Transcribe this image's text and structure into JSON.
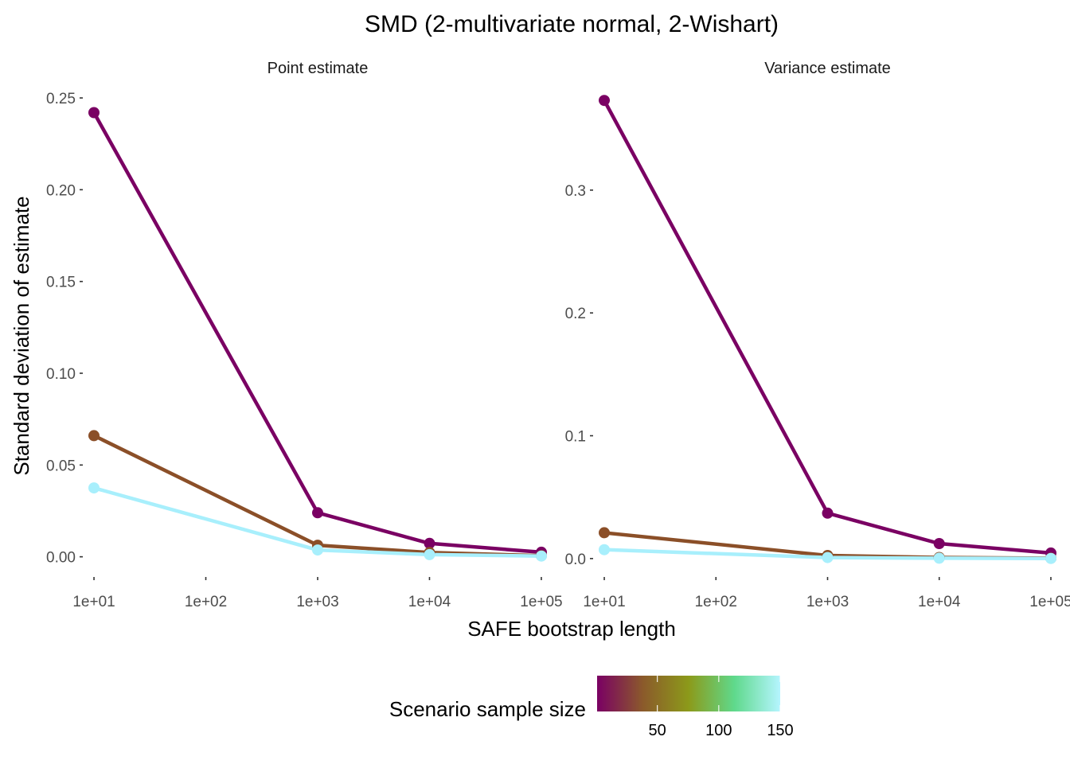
{
  "chart_data": {
    "type": "line",
    "title": "SMD (2-multivariate normal, 2-Wishart)",
    "xlabel": "SAFE bootstrap length",
    "ylabel": "Standard deviation of estimate",
    "x_scale": "log10",
    "x_ticks": [
      10,
      100,
      1000,
      10000,
      100000
    ],
    "x_tick_labels": [
      "1e+01",
      "1e+02",
      "1e+03",
      "1e+04",
      "1e+05"
    ],
    "grid": false,
    "legend": {
      "title": "Scenario sample size",
      "type": "colorbar",
      "position": "bottom",
      "range": [
        1,
        150
      ],
      "ticks": [
        50,
        100,
        150
      ],
      "tick_labels": [
        "50",
        "100",
        "150"
      ],
      "colors": [
        "#7a0063",
        "#8b5a2b",
        "#8c9a1a",
        "#5fd98c",
        "#b5f5ff"
      ]
    },
    "panels": [
      {
        "strip": "Point estimate",
        "ylim": [
          -0.011,
          0.26
        ],
        "y_ticks": [
          0,
          0.05,
          0.1,
          0.15,
          0.2,
          0.25
        ],
        "y_tick_labels": [
          "0.00",
          "0.05",
          "0.10",
          "0.15",
          "0.20",
          "0.25"
        ],
        "series": [
          {
            "sample_size": 10,
            "color": "#7a0063",
            "x": [
              10,
              1000,
              10000,
              100000
            ],
            "y": [
              0.242,
              0.024,
              0.0073,
              0.0025
            ]
          },
          {
            "sample_size": 50,
            "color": "#8b4f28",
            "x": [
              10,
              1000,
              10000,
              100000
            ],
            "y": [
              0.066,
              0.0063,
              0.0023,
              0.0006
            ]
          },
          {
            "sample_size": 150,
            "color": "#a8effc",
            "x": [
              10,
              1000,
              10000,
              100000
            ],
            "y": [
              0.0375,
              0.0037,
              0.0012,
              0.0004
            ]
          }
        ]
      },
      {
        "strip": "Variance estimate",
        "ylim": [
          -0.015,
          0.39
        ],
        "y_ticks": [
          0,
          0.1,
          0.2,
          0.3
        ],
        "y_tick_labels": [
          "0.0",
          "0.1",
          "0.2",
          "0.3"
        ],
        "series": [
          {
            "sample_size": 10,
            "color": "#7a0063",
            "x": [
              10,
              1000,
              10000,
              100000
            ],
            "y": [
              0.373,
              0.037,
              0.0122,
              0.0045
            ]
          },
          {
            "sample_size": 50,
            "color": "#8b4f28",
            "x": [
              10,
              1000,
              10000,
              100000
            ],
            "y": [
              0.021,
              0.0025,
              0.0009,
              0.0003
            ]
          },
          {
            "sample_size": 150,
            "color": "#a8effc",
            "x": [
              10,
              1000,
              10000,
              100000
            ],
            "y": [
              0.0072,
              0.0008,
              0.0003,
              0.0001
            ]
          }
        ]
      }
    ]
  }
}
